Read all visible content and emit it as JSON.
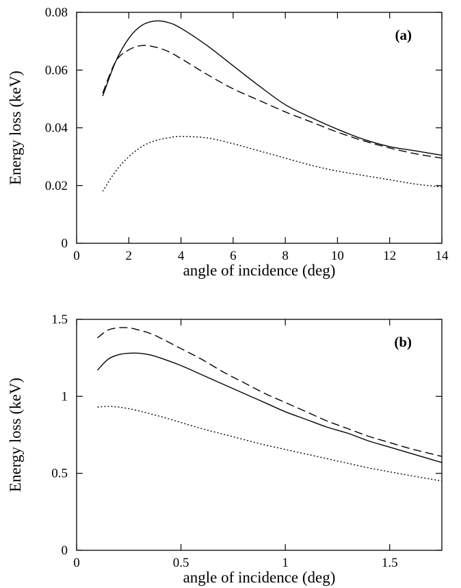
{
  "chart_data": [
    {
      "type": "line",
      "panel_label": "(a)",
      "xlabel": "angle of incidence (deg)",
      "ylabel": "Energy loss (keV)",
      "xlim": [
        0,
        14
      ],
      "ylim": [
        0,
        0.08
      ],
      "xticks": [
        0,
        2,
        4,
        6,
        8,
        10,
        12,
        14
      ],
      "xtick_labels": [
        "0",
        "2",
        "4",
        "6",
        "8",
        "10",
        "12",
        "14"
      ],
      "yticks": [
        0,
        0.02,
        0.04,
        0.06,
        0.08
      ],
      "ytick_labels": [
        "0",
        "0.02",
        "0.04",
        "0.06",
        "0.08"
      ],
      "legend": "none",
      "grid": false,
      "series": [
        {
          "style": "solid",
          "x": [
            1,
            1.5,
            2,
            2.5,
            3,
            3.5,
            4,
            5,
            6,
            7,
            8,
            9,
            10,
            11,
            12,
            13,
            14
          ],
          "y": [
            0.051,
            0.063,
            0.071,
            0.0755,
            0.077,
            0.0765,
            0.0745,
            0.0685,
            0.0615,
            0.0545,
            0.048,
            0.0435,
            0.0395,
            0.036,
            0.0335,
            0.032,
            0.0305
          ]
        },
        {
          "style": "dashed",
          "x": [
            1,
            1.5,
            2,
            2.5,
            3,
            3.5,
            4,
            5,
            6,
            7,
            8,
            9,
            10,
            11,
            12,
            13,
            14
          ],
          "y": [
            0.052,
            0.063,
            0.067,
            0.0685,
            0.068,
            0.0665,
            0.064,
            0.0585,
            0.0535,
            0.0495,
            0.0455,
            0.042,
            0.0385,
            0.0355,
            0.033,
            0.031,
            0.0295
          ]
        },
        {
          "style": "dotted",
          "x": [
            1,
            1.5,
            2,
            2.5,
            3,
            3.5,
            4,
            5,
            6,
            7,
            8,
            9,
            10,
            11,
            12,
            13,
            14
          ],
          "y": [
            0.018,
            0.025,
            0.03,
            0.0335,
            0.0355,
            0.0365,
            0.037,
            0.0365,
            0.0345,
            0.032,
            0.0295,
            0.027,
            0.025,
            0.0235,
            0.022,
            0.0205,
            0.0195
          ]
        }
      ]
    },
    {
      "type": "line",
      "panel_label": "(b)",
      "xlabel": "angle of incidence (deg)",
      "ylabel": "Energy loss (keV)",
      "xlim": [
        0,
        1.75
      ],
      "ylim": [
        0,
        1.5
      ],
      "xticks": [
        0,
        0.5,
        1,
        1.5
      ],
      "xtick_labels": [
        "0",
        "0.5",
        "1",
        "1.5"
      ],
      "yticks": [
        0,
        0.5,
        1,
        1.5
      ],
      "ytick_labels": [
        "0",
        "0.5",
        "1",
        "1.5"
      ],
      "legend": "none",
      "grid": false,
      "series": [
        {
          "style": "solid",
          "x": [
            0.1,
            0.15,
            0.2,
            0.25,
            0.3,
            0.35,
            0.4,
            0.5,
            0.6,
            0.7,
            0.8,
            0.9,
            1.0,
            1.1,
            1.2,
            1.3,
            1.4,
            1.5,
            1.6,
            1.75
          ],
          "y": [
            1.17,
            1.24,
            1.27,
            1.28,
            1.28,
            1.27,
            1.25,
            1.2,
            1.14,
            1.08,
            1.02,
            0.96,
            0.9,
            0.85,
            0.8,
            0.76,
            0.71,
            0.67,
            0.63,
            0.57
          ]
        },
        {
          "style": "dashed",
          "x": [
            0.1,
            0.15,
            0.2,
            0.25,
            0.3,
            0.35,
            0.4,
            0.5,
            0.6,
            0.7,
            0.8,
            0.9,
            1.0,
            1.1,
            1.2,
            1.3,
            1.4,
            1.5,
            1.6,
            1.75
          ],
          "y": [
            1.38,
            1.43,
            1.445,
            1.445,
            1.43,
            1.41,
            1.38,
            1.31,
            1.24,
            1.16,
            1.09,
            1.02,
            0.96,
            0.9,
            0.84,
            0.79,
            0.74,
            0.7,
            0.66,
            0.61
          ]
        },
        {
          "style": "dotted",
          "x": [
            0.1,
            0.15,
            0.2,
            0.25,
            0.3,
            0.4,
            0.5,
            0.6,
            0.7,
            0.8,
            0.9,
            1.0,
            1.1,
            1.2,
            1.3,
            1.4,
            1.5,
            1.6,
            1.75
          ],
          "y": [
            0.93,
            0.935,
            0.93,
            0.92,
            0.905,
            0.87,
            0.83,
            0.79,
            0.755,
            0.72,
            0.685,
            0.655,
            0.625,
            0.595,
            0.565,
            0.535,
            0.51,
            0.485,
            0.45
          ]
        }
      ]
    }
  ]
}
